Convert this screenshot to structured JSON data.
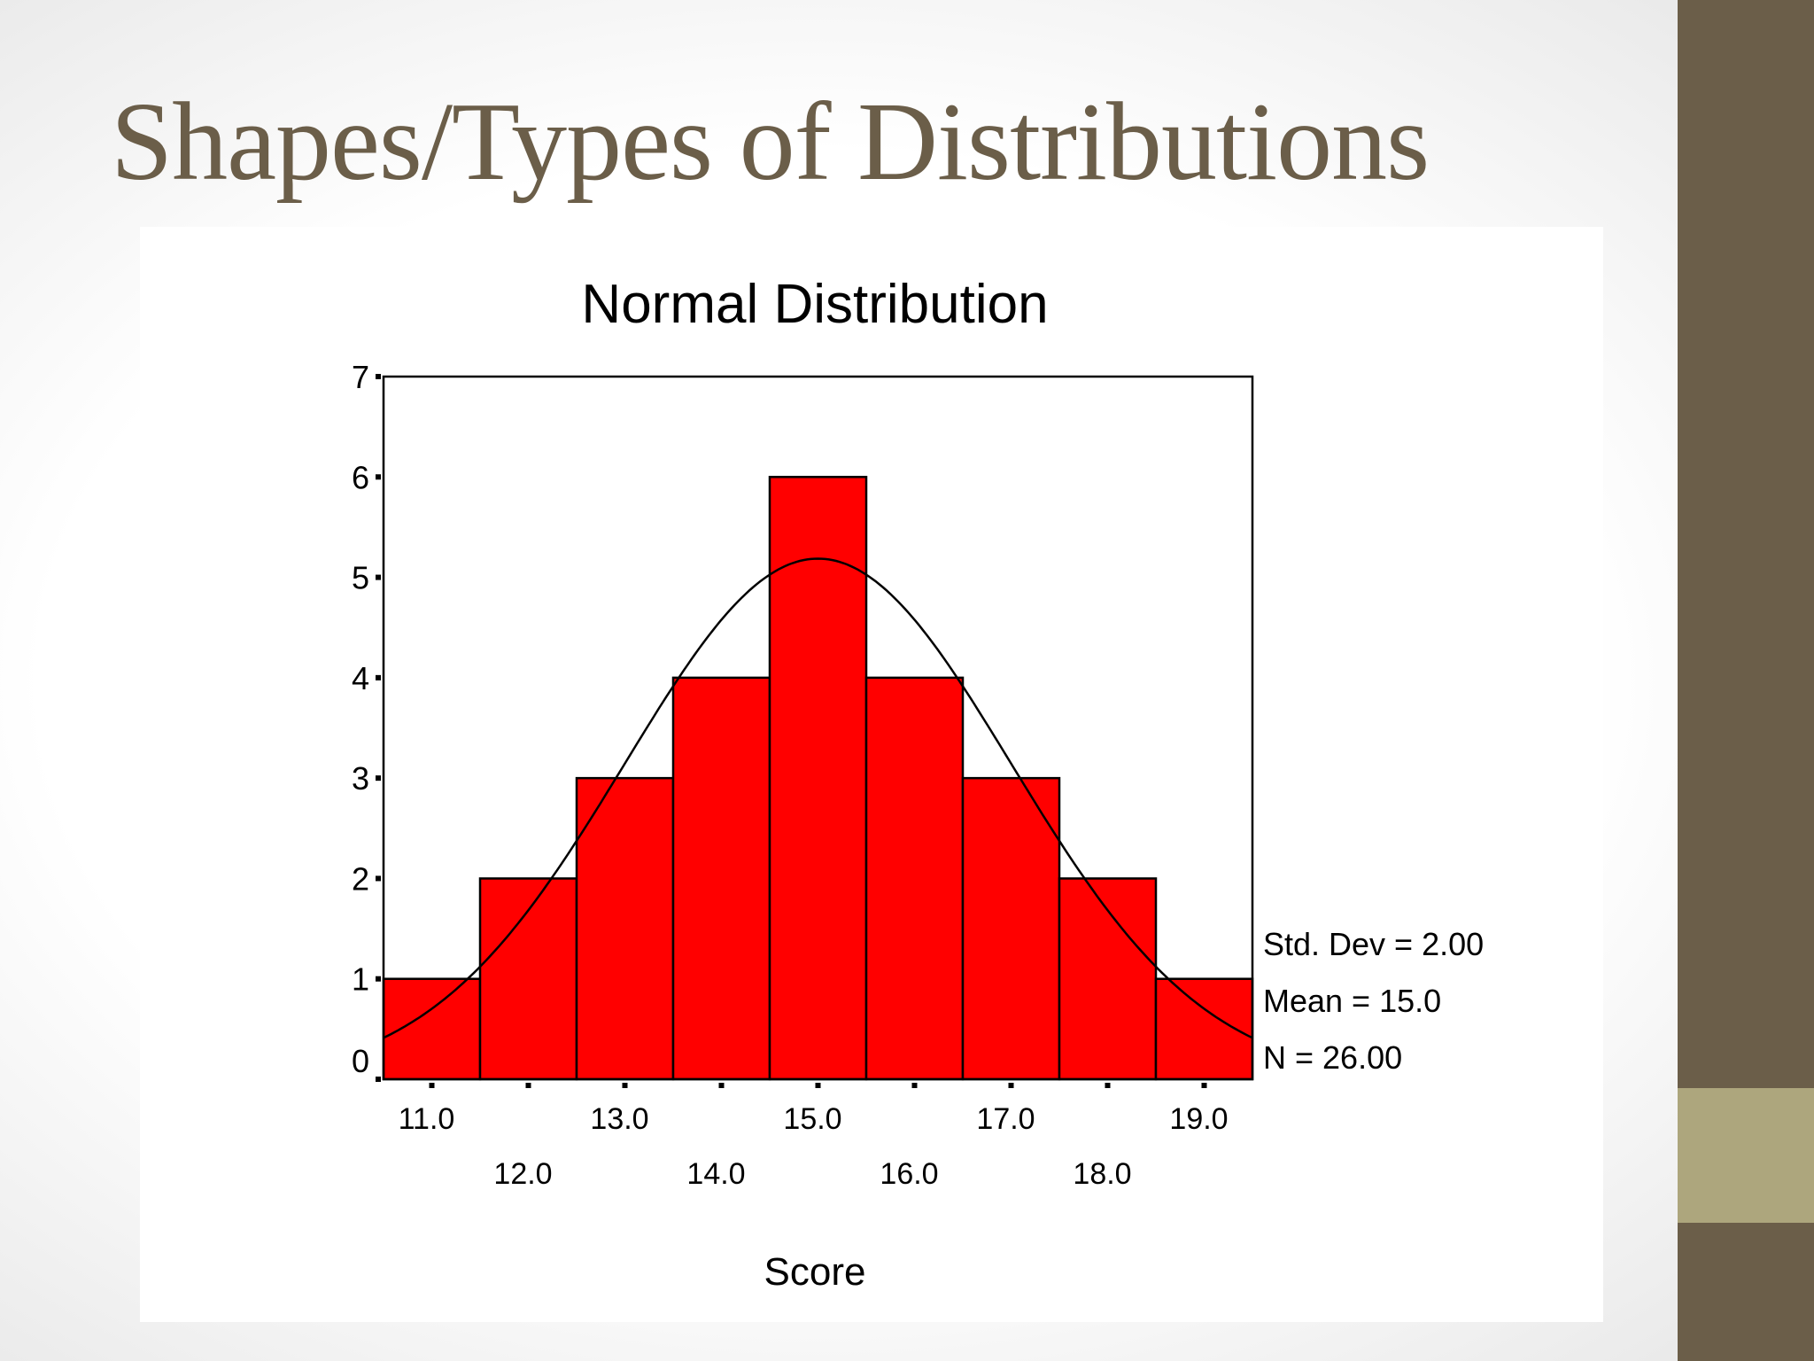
{
  "slide": {
    "title": "Shapes/Types of Distributions",
    "colors": {
      "title": "#6b5e49",
      "sidebar": "#6b5e49",
      "sidebar_accent": "#ada67d"
    }
  },
  "chart_data": {
    "type": "bar",
    "title": "Normal Distribution",
    "xlabel": "Score",
    "ylabel": "",
    "categories": [
      "11.0",
      "12.0",
      "13.0",
      "14.0",
      "15.0",
      "16.0",
      "17.0",
      "18.0",
      "19.0"
    ],
    "values": [
      1,
      2,
      3,
      4,
      6,
      4,
      3,
      2,
      1
    ],
    "ylim": [
      0,
      7
    ],
    "yticks": [
      0,
      1,
      2,
      3,
      4,
      5,
      6,
      7
    ],
    "bar_color": "#ff0000",
    "normal_curve": {
      "mean": 15.0,
      "std_dev": 2.0,
      "n": 26.0,
      "bin_width": 1.0
    },
    "stats": {
      "std_dev": "Std. Dev = 2.00",
      "mean": "Mean = 15.0",
      "n": "N = 26.00"
    },
    "grid": false,
    "legend": "none"
  }
}
